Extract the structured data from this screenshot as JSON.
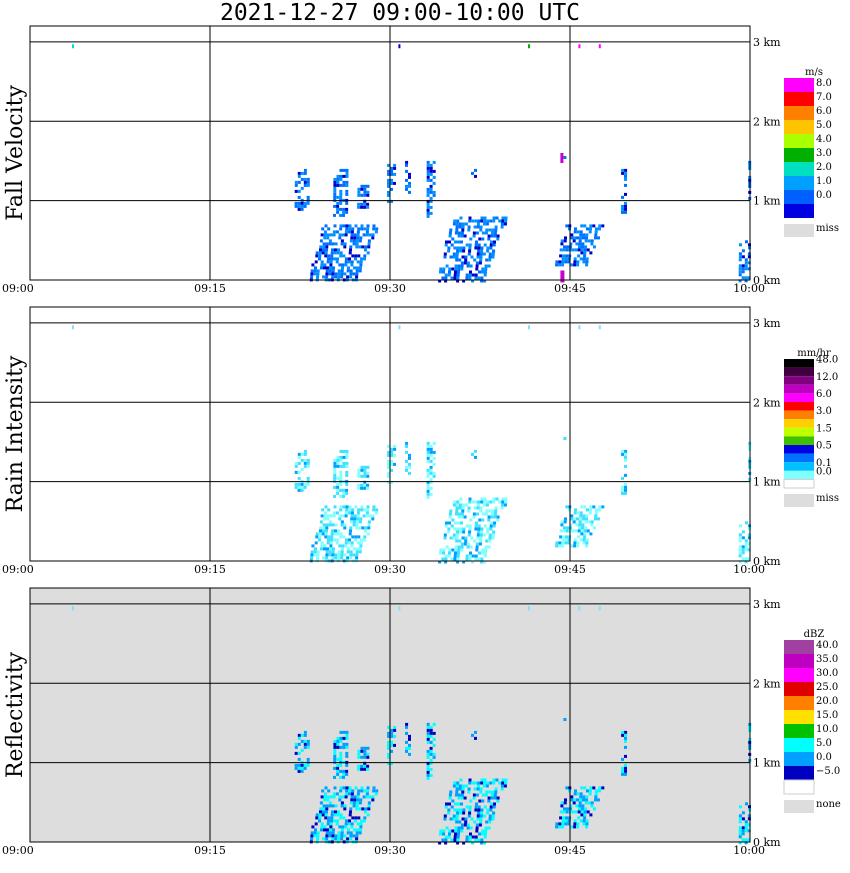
{
  "title": "2021-12-27   09:00-10:00 UTC",
  "chart_data": [
    {
      "type": "heatmap",
      "ylabel": "Fall Velocity",
      "x_ticks": [
        "09:00",
        "09:15",
        "09:30",
        "09:45",
        "10:00"
      ],
      "y_ticks": [
        "3 km",
        "2 km",
        "1 km",
        "0 km"
      ],
      "xlim_min": [
        0,
        60
      ],
      "ylim_km": [
        0,
        3.2
      ],
      "background": "white",
      "colorbar": {
        "unit": "m/s",
        "labels": [
          "8.0",
          "7.0",
          "6.0",
          "5.0",
          "4.0",
          "3.0",
          "2.0",
          "1.0",
          "0.0"
        ],
        "colors": [
          "#ff00ff",
          "#ff0000",
          "#ff7f00",
          "#ffc400",
          "#aaff00",
          "#00b000",
          "#00e0c0",
          "#00a0ff",
          "#0060ff",
          "#0000e0"
        ],
        "miss_label": "miss",
        "miss_color": "#dddddd"
      }
    },
    {
      "type": "heatmap",
      "ylabel": "Rain Intensity",
      "x_ticks": [
        "09:00",
        "09:15",
        "09:30",
        "09:45",
        "10:00"
      ],
      "y_ticks": [
        "3 km",
        "2 km",
        "1 km",
        "0 km"
      ],
      "xlim_min": [
        0,
        60
      ],
      "ylim_km": [
        0,
        3.2
      ],
      "background": "white",
      "colorbar": {
        "unit": "mm/hr",
        "labels": [
          "48.0",
          "",
          "12.0",
          "",
          "6.0",
          "",
          "3.0",
          "",
          "1.5",
          "",
          "0.5",
          "",
          "0.1",
          "0.0"
        ],
        "colors": [
          "#000000",
          "#400040",
          "#800080",
          "#c000c0",
          "#ff00ff",
          "#ff0000",
          "#ff7f00",
          "#ffd000",
          "#c0ff00",
          "#40c000",
          "#0000e0",
          "#0070ff",
          "#00c0ff",
          "#80ffff",
          "#ffffff"
        ],
        "miss_label": "miss",
        "miss_color": "#dddddd"
      }
    },
    {
      "type": "heatmap",
      "ylabel": "Reflectivity",
      "x_ticks": [
        "09:00",
        "09:15",
        "09:30",
        "09:45",
        "10:00"
      ],
      "y_ticks": [
        "3 km",
        "2 km",
        "1 km",
        "0 km"
      ],
      "xlim_min": [
        0,
        60
      ],
      "ylim_km": [
        0,
        3.2
      ],
      "background": "#dddddd",
      "colorbar": {
        "unit": "dBZ",
        "labels": [
          "40.0",
          "35.0",
          "30.0",
          "25.0",
          "20.0",
          "15.0",
          "10.0",
          "5.0",
          "0.0",
          "−5.0"
        ],
        "colors": [
          "#a040a0",
          "#c000c0",
          "#ff00ff",
          "#e00000",
          "#ff8000",
          "#ffe000",
          "#00c000",
          "#00ffff",
          "#00a0ff",
          "#0000c0",
          "#ffffff"
        ],
        "miss_label": "none",
        "miss_color": "#dddddd"
      }
    }
  ]
}
